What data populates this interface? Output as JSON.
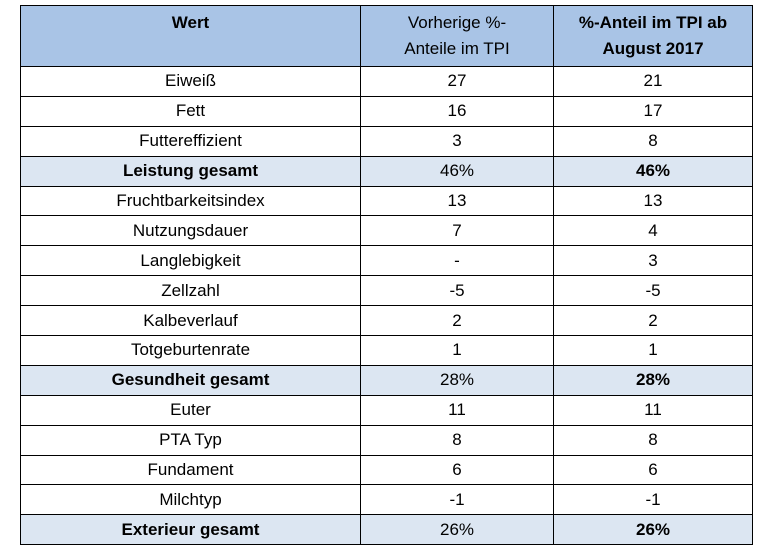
{
  "table": {
    "header": [
      "Wert",
      "Vorherige %-\nAnteile im TPI",
      "%-Anteil im TPI ab\nAugust 2017"
    ],
    "rows": [
      [
        "Eiweiß",
        "27",
        "21"
      ],
      [
        "Fett",
        "16",
        "17"
      ],
      [
        "Futtereffizient",
        "3",
        "8"
      ],
      [
        "Leistung gesamt",
        "46%",
        "46%"
      ],
      [
        "Fruchtbarkeitsindex",
        "13",
        "13"
      ],
      [
        "Nutzungsdauer",
        "7",
        "4"
      ],
      [
        "Langlebigkeit",
        "-",
        "3"
      ],
      [
        "Zellzahl",
        "-5",
        "-5"
      ],
      [
        "Kalbeverlauf",
        "2",
        "2"
      ],
      [
        "Totgeburtenrate",
        "1",
        "1"
      ],
      [
        "Gesundheit gesamt",
        "28%",
        "28%"
      ],
      [
        "Euter",
        "11",
        "11"
      ],
      [
        "PTA Typ",
        "8",
        "8"
      ],
      [
        "Fundament",
        "6",
        "6"
      ],
      [
        "Milchtyp",
        "-1",
        "-1"
      ],
      [
        "Exterieur gesamt",
        "26%",
        "26%"
      ]
    ]
  }
}
